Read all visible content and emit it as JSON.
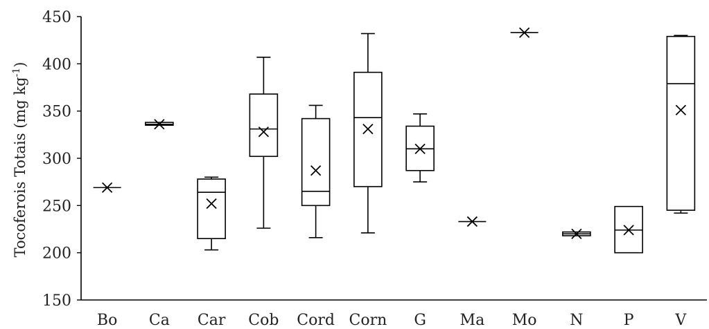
{
  "chart_data": {
    "type": "boxplot",
    "title": "",
    "xlabel": "",
    "ylabel": "Tocoferois Totais (mg kg",
    "ylabel_sup": "-1",
    "ylabel_end": ")",
    "ylim": [
      150,
      450
    ],
    "yticks": [
      150,
      200,
      250,
      300,
      350,
      400,
      450
    ],
    "grid": false,
    "legend": "none",
    "colors": {
      "stroke": "#000000",
      "background": "#ffffff"
    },
    "categories": [
      "Bo",
      "Ca",
      "Car",
      "Cob",
      "Cord",
      "Corn",
      "G",
      "Ma",
      "Mo",
      "N",
      "P",
      "V"
    ],
    "boxes": [
      {
        "category": "Bo",
        "min": 269,
        "q1": 269,
        "median": 269,
        "q3": 269,
        "max": 269,
        "mean": 269
      },
      {
        "category": "Ca",
        "min": 335,
        "q1": 335,
        "median": 336,
        "q3": 338,
        "max": 338,
        "mean": 336
      },
      {
        "category": "Car",
        "min": 203,
        "q1": 215,
        "median": 264,
        "q3": 278,
        "max": 280,
        "mean": 252
      },
      {
        "category": "Cob",
        "min": 226,
        "q1": 302,
        "median": 331,
        "q3": 368,
        "max": 407,
        "mean": 328
      },
      {
        "category": "Cord",
        "min": 216,
        "q1": 250,
        "median": 265,
        "q3": 342,
        "max": 356,
        "mean": 287
      },
      {
        "category": "Corn",
        "min": 221,
        "q1": 270,
        "median": 343,
        "q3": 391,
        "max": 432,
        "mean": 331
      },
      {
        "category": "G",
        "min": 275,
        "q1": 287,
        "median": 310,
        "q3": 334,
        "max": 347,
        "mean": 310
      },
      {
        "category": "Ma",
        "min": 233,
        "q1": 233,
        "median": 233,
        "q3": 233,
        "max": 233,
        "mean": 233
      },
      {
        "category": "Mo",
        "min": 433,
        "q1": 433,
        "median": 433,
        "q3": 433,
        "max": 433,
        "mean": 433
      },
      {
        "category": "N",
        "min": 218,
        "q1": 218,
        "median": 220,
        "q3": 222,
        "max": 222,
        "mean": 220
      },
      {
        "category": "P",
        "min": 200,
        "q1": 200,
        "median": 224,
        "q3": 249,
        "max": 249,
        "mean": 224
      },
      {
        "category": "V",
        "min": 242,
        "q1": 245,
        "median": 379,
        "q3": 429,
        "max": 430,
        "mean": 351
      }
    ]
  }
}
